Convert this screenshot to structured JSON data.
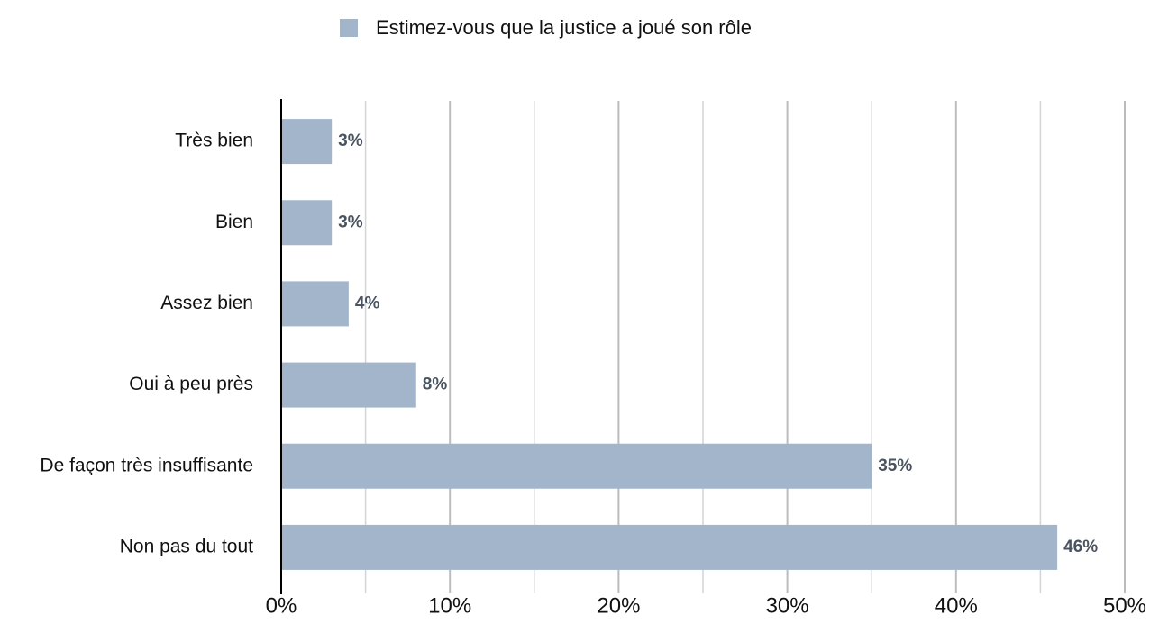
{
  "chart_data": {
    "type": "hbar",
    "categories": [
      "Très bien",
      "Bien",
      "Assez bien",
      "Oui à peu près",
      "De façon très insuffisante",
      "Non pas du tout"
    ],
    "series": [
      {
        "name": "Estimez-vous que la justice a joué son rôle",
        "color": "#a3b5cb",
        "values": [
          3,
          3,
          4,
          8,
          35,
          46
        ],
        "value_labels": [
          "3%",
          "3%",
          "4%",
          "8%",
          "35%",
          "46%"
        ]
      }
    ],
    "xlim": [
      0,
      50
    ],
    "xticks": [
      {
        "value": 0,
        "label": "0%"
      },
      {
        "value": 10,
        "label": "10%"
      },
      {
        "value": 20,
        "label": "20%"
      },
      {
        "value": 30,
        "label": "30%"
      },
      {
        "value": 40,
        "label": "40%"
      },
      {
        "value": 50,
        "label": "50%"
      }
    ],
    "xminorticks": [
      5,
      15,
      25,
      35,
      45
    ],
    "grid": true,
    "legend": "top"
  }
}
